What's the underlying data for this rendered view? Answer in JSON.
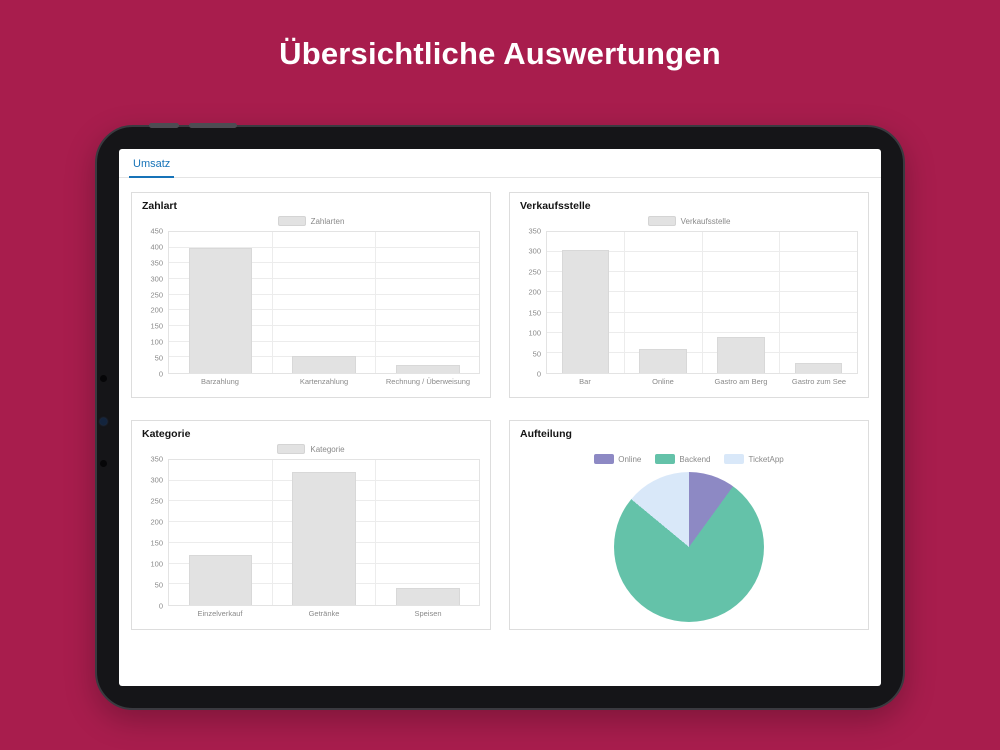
{
  "page": {
    "title": "Übersichtliche Auswertungen",
    "background_color": "#A81D4D"
  },
  "screen": {
    "tab": {
      "label": "Umsatz",
      "accent_color": "#1673B8"
    }
  },
  "chart_data": [
    {
      "type": "bar",
      "panel_title": "Zahlart",
      "legend": "Zahlarten",
      "categories": [
        "Barzahlung",
        "Kartenzahlung",
        "Rechnung / Überweisung"
      ],
      "values": [
        400,
        55,
        25
      ],
      "ylim": [
        0,
        450
      ],
      "ytick_step": 50,
      "bar_color": "#e2e2e2",
      "grid": true,
      "legend_position": "top-center"
    },
    {
      "type": "bar",
      "panel_title": "Verkaufsstelle",
      "legend": "Verkaufsstelle",
      "categories": [
        "Bar",
        "Online",
        "Gastro am Berg",
        "Gastro zum See"
      ],
      "values": [
        305,
        60,
        90,
        25
      ],
      "ylim": [
        0,
        350
      ],
      "ytick_step": 50,
      "bar_color": "#e2e2e2",
      "grid": true,
      "legend_position": "top-center"
    },
    {
      "type": "bar",
      "panel_title": "Kategorie",
      "legend": "Kategorie",
      "categories": [
        "Einzelverkauf",
        "Getränke",
        "Speisen"
      ],
      "values": [
        120,
        320,
        40
      ],
      "ylim": [
        0,
        350
      ],
      "ytick_step": 50,
      "bar_color": "#e2e2e2",
      "grid": true,
      "legend_position": "top-center"
    },
    {
      "type": "pie",
      "panel_title": "Aufteilung",
      "slices": [
        {
          "label": "Online",
          "value": 10,
          "color": "#8d89c4"
        },
        {
          "label": "Backend",
          "value": 76,
          "color": "#64c2a9"
        },
        {
          "label": "TicketApp",
          "value": 14,
          "color": "#d9e8f9"
        }
      ],
      "legend_position": "top-center"
    }
  ]
}
